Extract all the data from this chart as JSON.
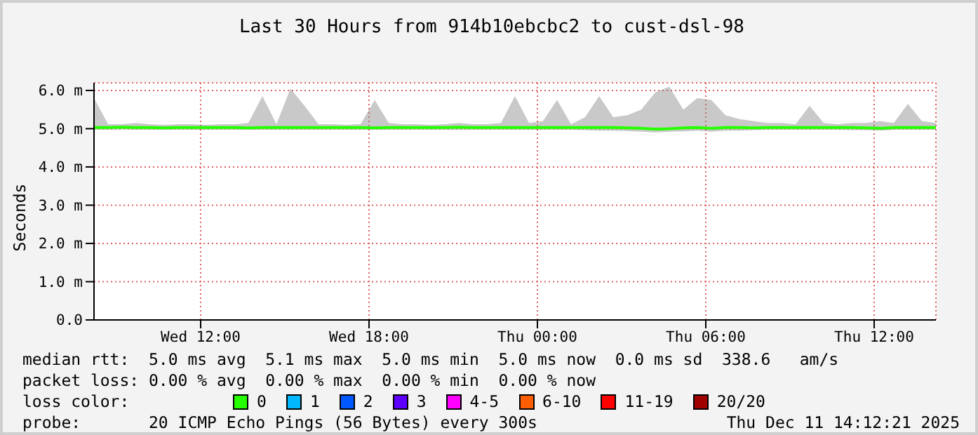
{
  "chart_data": {
    "type": "line",
    "title": "Last 30 Hours from 914b10ebcbc2 to cust-dsl-98",
    "ylabel": "Seconds",
    "legend_title": "loss color:",
    "legend": "bottom",
    "grid": true,
    "line_style": "solid",
    "marker": "none",
    "xlim": [
      "2025-12-10T08:12",
      "2025-12-11T14:12"
    ],
    "xticks": [
      {
        "value": "2025-12-10T12:00",
        "label": "Wed 12:00"
      },
      {
        "value": "2025-12-10T18:00",
        "label": "Wed 18:00"
      },
      {
        "value": "2025-12-11T00:00",
        "label": "Thu 00:00"
      },
      {
        "value": "2025-12-11T06:00",
        "label": "Thu 06:00"
      },
      {
        "value": "2025-12-11T12:00",
        "label": "Thu 12:00"
      }
    ],
    "ylim": [
      0,
      6.2
    ],
    "yticks": [
      {
        "value": 0,
        "label": "0.0"
      },
      {
        "value": 1,
        "label": "1.0 m"
      },
      {
        "value": 2,
        "label": "2.0 m"
      },
      {
        "value": 3,
        "label": "3.0 m"
      },
      {
        "value": 4,
        "label": "4.0 m"
      },
      {
        "value": 5,
        "label": "5.0 m"
      },
      {
        "value": 6,
        "label": "6.0 m"
      }
    ],
    "x": [
      "2025-12-10T08:12",
      "2025-12-10T08:42",
      "2025-12-10T09:12",
      "2025-12-10T09:42",
      "2025-12-10T10:12",
      "2025-12-10T10:42",
      "2025-12-10T11:12",
      "2025-12-10T11:42",
      "2025-12-10T12:12",
      "2025-12-10T12:42",
      "2025-12-10T13:12",
      "2025-12-10T13:42",
      "2025-12-10T14:12",
      "2025-12-10T14:42",
      "2025-12-10T15:12",
      "2025-12-10T15:42",
      "2025-12-10T16:12",
      "2025-12-10T16:42",
      "2025-12-10T17:12",
      "2025-12-10T17:42",
      "2025-12-10T18:12",
      "2025-12-10T18:42",
      "2025-12-10T19:12",
      "2025-12-10T19:42",
      "2025-12-10T20:12",
      "2025-12-10T20:42",
      "2025-12-10T21:12",
      "2025-12-10T21:42",
      "2025-12-10T22:12",
      "2025-12-10T22:42",
      "2025-12-10T23:12",
      "2025-12-10T23:42",
      "2025-12-11T00:12",
      "2025-12-11T00:42",
      "2025-12-11T01:12",
      "2025-12-11T01:42",
      "2025-12-11T02:12",
      "2025-12-11T02:42",
      "2025-12-11T03:12",
      "2025-12-11T03:42",
      "2025-12-11T04:12",
      "2025-12-11T04:42",
      "2025-12-11T05:12",
      "2025-12-11T05:42",
      "2025-12-11T06:12",
      "2025-12-11T06:42",
      "2025-12-11T07:12",
      "2025-12-11T07:42",
      "2025-12-11T08:12",
      "2025-12-11T08:42",
      "2025-12-11T09:12",
      "2025-12-11T09:42",
      "2025-12-11T10:12",
      "2025-12-11T10:42",
      "2025-12-11T11:12",
      "2025-12-11T11:42",
      "2025-12-11T12:12",
      "2025-12-11T12:42",
      "2025-12-11T13:12",
      "2025-12-11T13:42",
      "2025-12-11T14:12"
    ],
    "series": [
      {
        "name": "0",
        "color": "#26ff00",
        "values": [
          5.03,
          5.03,
          5.04,
          5.03,
          5.03,
          5.02,
          5.03,
          5.03,
          5.03,
          5.03,
          5.03,
          5.02,
          5.03,
          5.03,
          5.03,
          5.03,
          5.03,
          5.03,
          5.03,
          5.03,
          5.02,
          5.03,
          5.03,
          5.03,
          5.03,
          5.03,
          5.04,
          5.03,
          5.03,
          5.03,
          5.03,
          5.03,
          5.03,
          5.03,
          5.03,
          5.03,
          5.03,
          5.03,
          5.02,
          5.01,
          4.99,
          5.0,
          5.02,
          5.03,
          5.01,
          5.03,
          5.03,
          5.02,
          5.03,
          5.03,
          5.03,
          5.03,
          5.03,
          5.03,
          5.03,
          5.02,
          5.01,
          5.03,
          5.03,
          5.03,
          5.03
        ],
        "lower": [
          4.97,
          4.97,
          4.98,
          4.97,
          4.97,
          4.97,
          4.97,
          4.97,
          4.97,
          4.97,
          4.97,
          4.97,
          4.97,
          4.97,
          4.97,
          4.97,
          4.97,
          4.97,
          4.97,
          4.97,
          4.97,
          4.97,
          4.97,
          4.97,
          4.97,
          4.97,
          4.97,
          4.97,
          4.97,
          4.97,
          4.97,
          4.97,
          4.97,
          4.97,
          4.97,
          4.96,
          4.95,
          4.95,
          4.94,
          4.92,
          4.9,
          4.92,
          4.93,
          4.95,
          4.92,
          4.95,
          4.95,
          4.96,
          4.97,
          4.97,
          4.97,
          4.97,
          4.97,
          4.97,
          4.96,
          4.96,
          4.95,
          4.97,
          4.97,
          4.97,
          4.97
        ],
        "upper": [
          5.8,
          5.12,
          5.12,
          5.15,
          5.12,
          5.1,
          5.12,
          5.12,
          5.1,
          5.12,
          5.12,
          5.15,
          5.85,
          5.12,
          6.05,
          5.6,
          5.12,
          5.12,
          5.1,
          5.12,
          5.75,
          5.15,
          5.12,
          5.12,
          5.1,
          5.12,
          5.15,
          5.12,
          5.12,
          5.15,
          5.85,
          5.15,
          5.2,
          5.75,
          5.12,
          5.3,
          5.85,
          5.3,
          5.35,
          5.5,
          5.95,
          6.1,
          5.5,
          5.8,
          5.75,
          5.35,
          5.25,
          5.2,
          5.15,
          5.15,
          5.12,
          5.6,
          5.15,
          5.12,
          5.15,
          5.15,
          5.2,
          5.15,
          5.65,
          5.2,
          5.15
        ]
      },
      {
        "name": "1",
        "color": "#00b8ff",
        "values": [
          null,
          null,
          null,
          null,
          null,
          null,
          null,
          null,
          null,
          null,
          null,
          null,
          null,
          null,
          null,
          null,
          null,
          null,
          null,
          null,
          null,
          null,
          null,
          null,
          null,
          null,
          null,
          null,
          null,
          null,
          null,
          null,
          null,
          null,
          null,
          null,
          null,
          null,
          null,
          null,
          null,
          null,
          null,
          null,
          null,
          null,
          null,
          null,
          null,
          null,
          null,
          null,
          null,
          null,
          null,
          null,
          null,
          null,
          null,
          null,
          null
        ]
      },
      {
        "name": "2",
        "color": "#0059ff",
        "values": [
          null,
          null,
          null,
          null,
          null,
          null,
          null,
          null,
          null,
          null,
          null,
          null,
          null,
          null,
          null,
          null,
          null,
          null,
          null,
          null,
          null,
          null,
          null,
          null,
          null,
          null,
          null,
          null,
          null,
          null,
          null,
          null,
          null,
          null,
          null,
          null,
          null,
          null,
          null,
          null,
          null,
          null,
          null,
          null,
          null,
          null,
          null,
          null,
          null,
          null,
          null,
          null,
          null,
          null,
          null,
          null,
          null,
          null,
          null,
          null,
          null
        ]
      },
      {
        "name": "3",
        "color": "#5e00ff",
        "values": [
          null,
          null,
          null,
          null,
          null,
          null,
          null,
          null,
          null,
          null,
          null,
          null,
          null,
          null,
          null,
          null,
          null,
          null,
          null,
          null,
          null,
          null,
          null,
          null,
          null,
          null,
          null,
          null,
          null,
          null,
          null,
          null,
          null,
          null,
          null,
          null,
          null,
          null,
          null,
          null,
          null,
          null,
          null,
          null,
          null,
          null,
          null,
          null,
          null,
          null,
          null,
          null,
          null,
          null,
          null,
          null,
          null,
          null,
          null,
          null,
          null
        ]
      },
      {
        "name": "4-5",
        "color": "#ff00ff",
        "values": [
          null,
          null,
          null,
          null,
          null,
          null,
          null,
          null,
          null,
          null,
          null,
          null,
          null,
          null,
          null,
          null,
          null,
          null,
          null,
          null,
          null,
          null,
          null,
          null,
          null,
          null,
          null,
          null,
          null,
          null,
          null,
          null,
          null,
          null,
          null,
          null,
          null,
          null,
          null,
          null,
          null,
          null,
          null,
          null,
          null,
          null,
          null,
          null,
          null,
          null,
          null,
          null,
          null,
          null,
          null,
          null,
          null,
          null,
          null,
          null,
          null
        ]
      },
      {
        "name": "6-10",
        "color": "#ff5e00",
        "values": [
          null,
          null,
          null,
          null,
          null,
          null,
          null,
          null,
          null,
          null,
          null,
          null,
          null,
          null,
          null,
          null,
          null,
          null,
          null,
          null,
          null,
          null,
          null,
          null,
          null,
          null,
          null,
          null,
          null,
          null,
          null,
          null,
          null,
          null,
          null,
          null,
          null,
          null,
          null,
          null,
          null,
          null,
          null,
          null,
          null,
          null,
          null,
          null,
          null,
          null,
          null,
          null,
          null,
          null,
          null,
          null,
          null,
          null,
          null,
          null,
          null
        ]
      },
      {
        "name": "11-19",
        "color": "#ff0000",
        "values": [
          null,
          null,
          null,
          null,
          null,
          null,
          null,
          null,
          null,
          null,
          null,
          null,
          null,
          null,
          null,
          null,
          null,
          null,
          null,
          null,
          null,
          null,
          null,
          null,
          null,
          null,
          null,
          null,
          null,
          null,
          null,
          null,
          null,
          null,
          null,
          null,
          null,
          null,
          null,
          null,
          null,
          null,
          null,
          null,
          null,
          null,
          null,
          null,
          null,
          null,
          null,
          null,
          null,
          null,
          null,
          null,
          null,
          null,
          null,
          null,
          null
        ]
      },
      {
        "name": "20/20",
        "color": "#a10000",
        "values": [
          null,
          null,
          null,
          null,
          null,
          null,
          null,
          null,
          null,
          null,
          null,
          null,
          null,
          null,
          null,
          null,
          null,
          null,
          null,
          null,
          null,
          null,
          null,
          null,
          null,
          null,
          null,
          null,
          null,
          null,
          null,
          null,
          null,
          null,
          null,
          null,
          null,
          null,
          null,
          null,
          null,
          null,
          null,
          null,
          null,
          null,
          null,
          null,
          null,
          null,
          null,
          null,
          null,
          null,
          null,
          null,
          null,
          null,
          null,
          null,
          null
        ]
      }
    ],
    "annotations": [
      "median rtt:  5.0 ms avg  5.1 ms max  5.0 ms min  5.0 ms now  0.0 ms sd  338.6   am/s",
      "packet loss: 0.00 % avg  0.00 % max  0.00 % min  0.00 % now",
      "probe:       20 ICMP Echo Pings (56 Bytes) every 300s",
      "Thu Dec 11 14:12:21 2025"
    ]
  }
}
